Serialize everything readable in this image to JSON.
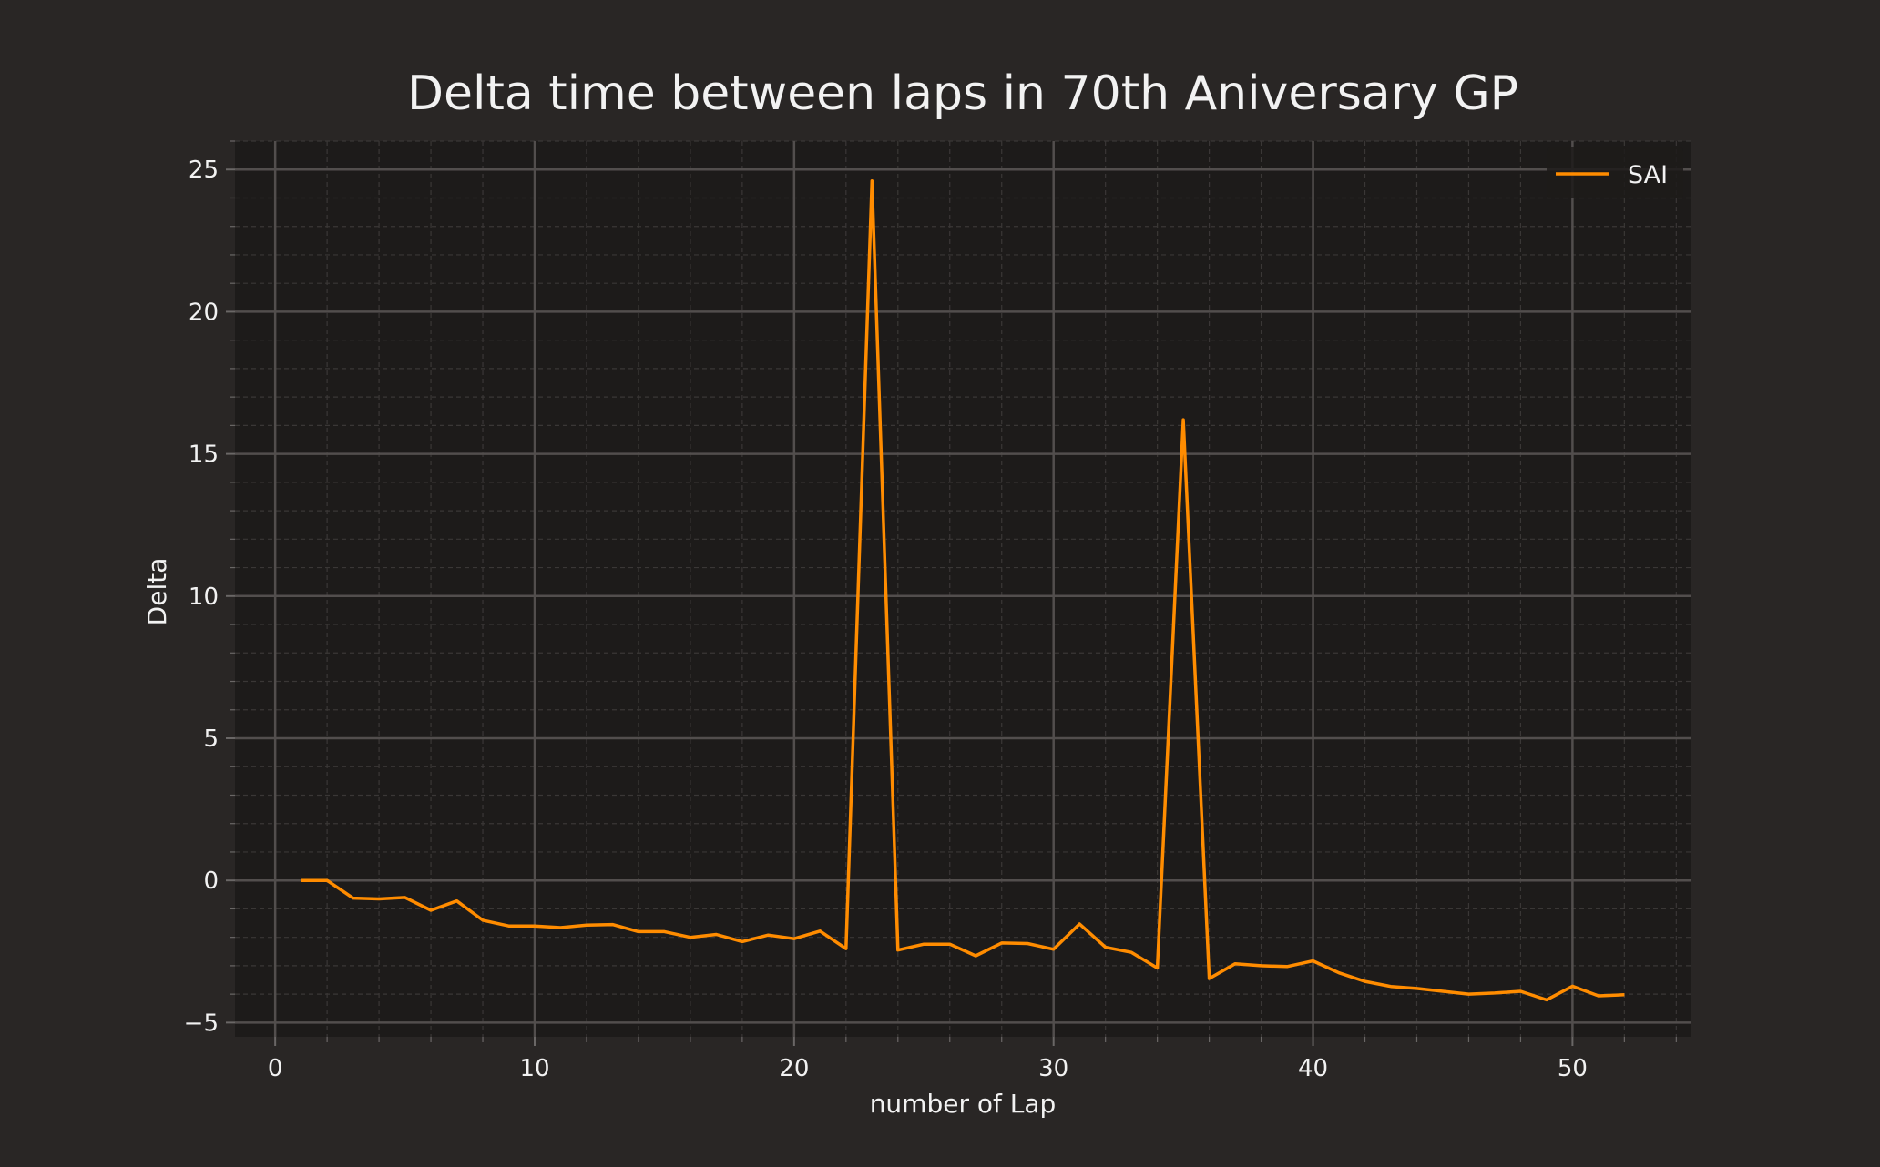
{
  "chart_data": {
    "type": "line",
    "title": "Delta time between laps in 70th Aniversary GP",
    "xlabel": "number of Lap",
    "ylabel": "Delta",
    "xlim": [
      -1.55,
      54.55
    ],
    "ylim": [
      -5.5,
      26
    ],
    "xticks": [
      0,
      10,
      20,
      30,
      40,
      50
    ],
    "yticks": [
      -5,
      0,
      5,
      10,
      15,
      20,
      25
    ],
    "grid": true,
    "legend_position": "top-right",
    "series": [
      {
        "name": "SAI",
        "color": "#ff8c00",
        "x": [
          1,
          2,
          3,
          4,
          5,
          6,
          7,
          8,
          9,
          10,
          11,
          12,
          13,
          14,
          15,
          16,
          17,
          18,
          19,
          20,
          21,
          22,
          23,
          24,
          25,
          26,
          27,
          28,
          29,
          30,
          31,
          32,
          33,
          34,
          35,
          36,
          37,
          38,
          39,
          40,
          41,
          42,
          43,
          44,
          45,
          46,
          47,
          48,
          49,
          50,
          51,
          52
        ],
        "y": [
          0.0,
          0.0,
          -0.62,
          -0.65,
          -0.6,
          -1.05,
          -0.72,
          -1.4,
          -1.6,
          -1.6,
          -1.66,
          -1.57,
          -1.55,
          -1.8,
          -1.8,
          -2.0,
          -1.9,
          -2.15,
          -1.92,
          -2.05,
          -1.78,
          -2.4,
          24.6,
          -2.45,
          -2.24,
          -2.24,
          -2.65,
          -2.2,
          -2.22,
          -2.42,
          -1.53,
          -2.35,
          -2.53,
          -3.08,
          16.2,
          -3.45,
          -2.93,
          -3.0,
          -3.03,
          -2.83,
          -3.25,
          -3.55,
          -3.73,
          -3.8,
          -3.9,
          -4.0,
          -3.96,
          -3.9,
          -4.2,
          -3.72,
          -4.06,
          -4.02
        ]
      }
    ]
  }
}
